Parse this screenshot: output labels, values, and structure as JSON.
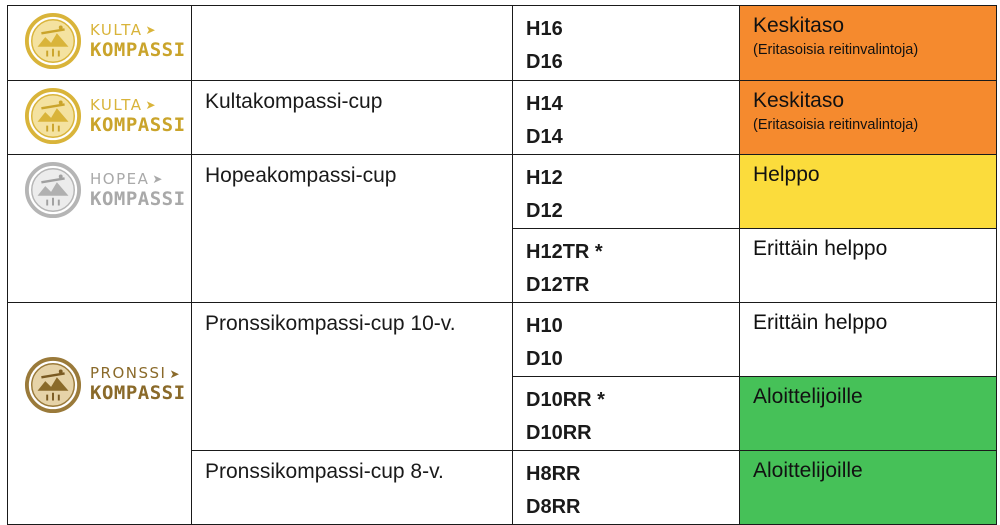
{
  "rows": [
    {
      "logo": {
        "top": "KULTA",
        "bottom": "KOMPASSI",
        "color": "#d9b43a"
      },
      "cup": "",
      "classes": [
        "H16",
        "D16"
      ],
      "level": "Keskitaso",
      "level_note": "(Eritasoisia reitinvalintoja)",
      "level_color": "#f58a2e"
    },
    {
      "logo": {
        "top": "KULTA",
        "bottom": "KOMPASSI",
        "color": "#d9b43a"
      },
      "cup": "Kultakompassi-cup",
      "classes": [
        "H14",
        "D14"
      ],
      "level": "Keskitaso",
      "level_note": "(Eritasoisia reitinvalintoja)",
      "level_color": "#f58a2e"
    },
    {
      "logo": {
        "top": "HOPEA",
        "bottom": "KOMPASSI",
        "color": "#a9a9a9"
      },
      "cup": "Hopeakompassi-cup",
      "classes": [
        "H12",
        "D12"
      ],
      "level": "Helppo",
      "level_color": "#fbdc3c"
    },
    {
      "classes": [
        "H12TR *",
        "D12TR"
      ],
      "level": "Erittäin helppo",
      "level_color": "#ffffff"
    },
    {
      "logo": {
        "top": "PRONSSI",
        "bottom": "KOMPASSI",
        "color": "#8a6a2a"
      },
      "cup": "Pronssikompassi-cup 10-v.",
      "classes": [
        "H10",
        "D10"
      ],
      "level": "Erittäin helppo",
      "level_color": "#ffffff"
    },
    {
      "classes": [
        "D10RR *",
        "D10RR"
      ],
      "level": "Aloittelijoille",
      "level_color": "#46c158"
    },
    {
      "cup": "Pronssikompassi-cup 8-v.",
      "classes": [
        "H8RR",
        "D8RR"
      ],
      "level": "Aloittelijoille",
      "level_color": "#46c158"
    }
  ],
  "icons": {
    "medal": "compass-medal-icon",
    "arrow": "arrow-right-icon"
  }
}
